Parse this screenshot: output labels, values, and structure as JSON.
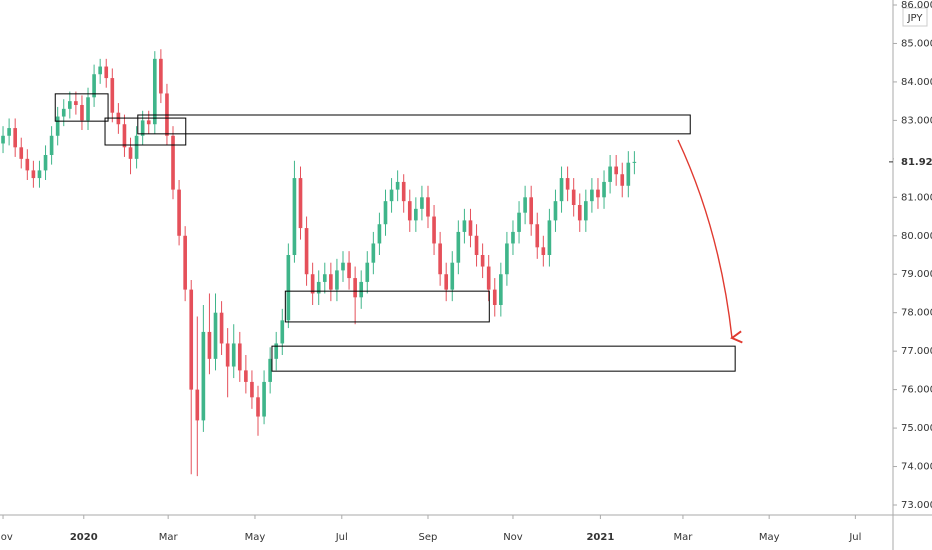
{
  "chart_data": {
    "type": "candlestick",
    "currency": "JPY",
    "up_color": "#3fb58a",
    "down_color": "#e5505a",
    "open": [
      82.4,
      82.6,
      82.8,
      82.3,
      82.0,
      81.7,
      81.5,
      81.7,
      82.1,
      82.6,
      83.1,
      83.3,
      83.5,
      83.4,
      83.0,
      83.6,
      84.2,
      84.4,
      84.1,
      83.2,
      82.9,
      82.3,
      82.0,
      82.6,
      83.0,
      82.9,
      84.6,
      83.7,
      82.6,
      81.2,
      80.0,
      78.6,
      76.0,
      75.2,
      77.5,
      76.8,
      78.0,
      77.2,
      76.6,
      77.2,
      76.5,
      76.2,
      75.8,
      75.3,
      76.2,
      76.8,
      77.2,
      77.8,
      79.5,
      81.5,
      80.2,
      79.0,
      78.5,
      78.8,
      79.0,
      78.6,
      79.1,
      79.3,
      78.9,
      78.4,
      78.8,
      79.3,
      79.8,
      80.3,
      80.9,
      81.2,
      81.4,
      80.9,
      80.4,
      80.7,
      81.0,
      80.5,
      79.8,
      79.0,
      78.6,
      79.3,
      80.1,
      80.4,
      80.0,
      79.5,
      79.2,
      78.6,
      78.2,
      79.0,
      79.8,
      80.1,
      80.6,
      81.0,
      80.3,
      79.7,
      79.5,
      80.4,
      80.9,
      81.5,
      81.2,
      80.8,
      80.4,
      80.9,
      81.2,
      81.0,
      81.4,
      81.8,
      81.6,
      81.3,
      81.9
    ],
    "high": [
      82.85,
      83.05,
      83.05,
      82.55,
      82.25,
      81.95,
      81.95,
      82.35,
      82.85,
      83.35,
      83.55,
      83.75,
      83.75,
      83.65,
      83.85,
      84.45,
      84.6,
      84.6,
      84.35,
      83.45,
      83.15,
      82.55,
      82.85,
      83.25,
      83.25,
      84.8,
      84.85,
      83.95,
      82.85,
      81.45,
      80.25,
      78.85,
      77.9,
      78.2,
      78.5,
      78.5,
      78.3,
      77.6,
      77.7,
      77.5,
      76.9,
      76.5,
      76.1,
      76.5,
      77.1,
      77.5,
      78.1,
      79.8,
      81.95,
      81.8,
      80.5,
      79.3,
      79.1,
      79.3,
      79.3,
      79.4,
      79.6,
      79.6,
      79.2,
      79.1,
      79.6,
      80.1,
      80.6,
      81.2,
      81.5,
      81.7,
      81.6,
      81.2,
      81.0,
      81.3,
      81.3,
      80.8,
      80.1,
      79.3,
      79.6,
      80.4,
      80.7,
      80.7,
      80.3,
      79.8,
      79.5,
      78.9,
      79.3,
      80.1,
      80.4,
      80.9,
      81.3,
      81.3,
      80.6,
      80.0,
      80.7,
      81.2,
      81.8,
      81.8,
      81.5,
      81.1,
      81.2,
      81.5,
      81.5,
      81.7,
      82.1,
      82.1,
      81.9,
      82.2,
      82.2
    ],
    "low": [
      82.15,
      82.35,
      82.05,
      81.75,
      81.45,
      81.25,
      81.25,
      81.45,
      81.85,
      82.35,
      82.85,
      83.05,
      83.15,
      82.75,
      82.75,
      83.35,
      83.95,
      83.85,
      82.95,
      82.65,
      82.05,
      81.6,
      81.75,
      82.35,
      82.65,
      82.65,
      83.45,
      82.35,
      80.95,
      79.75,
      78.3,
      73.8,
      73.75,
      74.9,
      76.4,
      76.5,
      76.9,
      75.8,
      76.3,
      76.2,
      75.9,
      75.5,
      74.8,
      75.1,
      75.9,
      76.5,
      76.9,
      77.6,
      79.3,
      79.9,
      78.7,
      78.2,
      78.2,
      78.5,
      78.3,
      78.3,
      78.8,
      78.6,
      77.7,
      78.1,
      78.5,
      79.0,
      79.5,
      80.0,
      80.6,
      80.9,
      80.6,
      80.1,
      80.1,
      80.4,
      80.2,
      79.5,
      78.7,
      78.3,
      78.3,
      79.0,
      79.8,
      79.7,
      79.2,
      78.9,
      78.3,
      77.9,
      77.9,
      78.7,
      79.5,
      79.8,
      80.3,
      80.0,
      79.4,
      79.2,
      79.2,
      80.1,
      80.6,
      80.9,
      80.5,
      80.1,
      80.1,
      80.6,
      80.7,
      80.7,
      81.1,
      81.3,
      81.0,
      81.0,
      81.6
    ],
    "close": [
      82.6,
      82.8,
      82.3,
      82.0,
      81.7,
      81.5,
      81.7,
      82.1,
      82.6,
      83.1,
      83.3,
      83.5,
      83.4,
      83.0,
      83.6,
      84.2,
      84.4,
      84.1,
      83.2,
      82.9,
      82.3,
      82.0,
      82.6,
      83.0,
      82.9,
      84.6,
      83.7,
      82.6,
      81.2,
      80.0,
      78.6,
      76.0,
      75.2,
      77.5,
      76.8,
      78.0,
      77.2,
      76.6,
      77.2,
      76.5,
      76.2,
      75.8,
      75.3,
      76.2,
      76.8,
      77.2,
      77.8,
      79.5,
      81.5,
      80.2,
      79.0,
      78.5,
      78.8,
      79.0,
      78.6,
      79.1,
      79.3,
      78.9,
      78.4,
      78.8,
      79.3,
      79.8,
      80.3,
      80.9,
      81.2,
      81.4,
      80.9,
      80.4,
      80.7,
      81.0,
      80.5,
      79.8,
      79.0,
      78.6,
      79.3,
      80.1,
      80.4,
      80.0,
      79.5,
      79.2,
      78.6,
      78.2,
      79.0,
      79.8,
      80.1,
      80.6,
      81.0,
      80.3,
      79.7,
      79.5,
      80.4,
      80.9,
      81.5,
      81.2,
      80.8,
      80.4,
      80.9,
      81.2,
      81.0,
      81.4,
      81.8,
      81.6,
      81.3,
      81.9,
      81.921
    ],
    "xlim": [
      -0.5,
      146.6
    ],
    "ylim": [
      72.74,
      86.13
    ],
    "xticks": [
      {
        "value": 0,
        "label": "Nov"
      },
      {
        "value": 13.3,
        "label": "2020"
      },
      {
        "value": 27.2,
        "label": "Mar"
      },
      {
        "value": 41.5,
        "label": "May"
      },
      {
        "value": 55.8,
        "label": "Jul"
      },
      {
        "value": 70.0,
        "label": "Sep"
      },
      {
        "value": 84.0,
        "label": "Nov"
      },
      {
        "value": 98.4,
        "label": "2021"
      },
      {
        "value": 112.0,
        "label": "Mar"
      },
      {
        "value": 126.2,
        "label": "May"
      },
      {
        "value": 140.4,
        "label": "Jul"
      }
    ],
    "yticks": [
      {
        "value": 73,
        "label": "73.000"
      },
      {
        "value": 74,
        "label": "74.000"
      },
      {
        "value": 75,
        "label": "75.000"
      },
      {
        "value": 76,
        "label": "76.000"
      },
      {
        "value": 77,
        "label": "77.000"
      },
      {
        "value": 78,
        "label": "78.000"
      },
      {
        "value": 79,
        "label": "79.000"
      },
      {
        "value": 80,
        "label": "80.000"
      },
      {
        "value": 81,
        "label": "81.000"
      },
      {
        "value": 82,
        "label": "82.000"
      },
      {
        "value": 83,
        "label": "83.000"
      },
      {
        "value": 84,
        "label": "84.000"
      },
      {
        "value": 85,
        "label": "85.000"
      },
      {
        "value": 86,
        "label": "86.000"
      }
    ],
    "zones": [
      {
        "x": [
          8.6,
          17.3
        ],
        "y": [
          82.98,
          83.69
        ]
      },
      {
        "x": [
          16.8,
          30.1
        ],
        "y": [
          82.36,
          83.06
        ]
      },
      {
        "x": [
          22.2,
          113.2
        ],
        "y": [
          82.65,
          83.14
        ]
      },
      {
        "x": [
          46.5,
          80.1
        ],
        "y": [
          77.76,
          78.56
        ]
      },
      {
        "x": [
          44.3,
          120.6
        ],
        "y": [
          76.48,
          77.13
        ]
      }
    ]
  }
}
